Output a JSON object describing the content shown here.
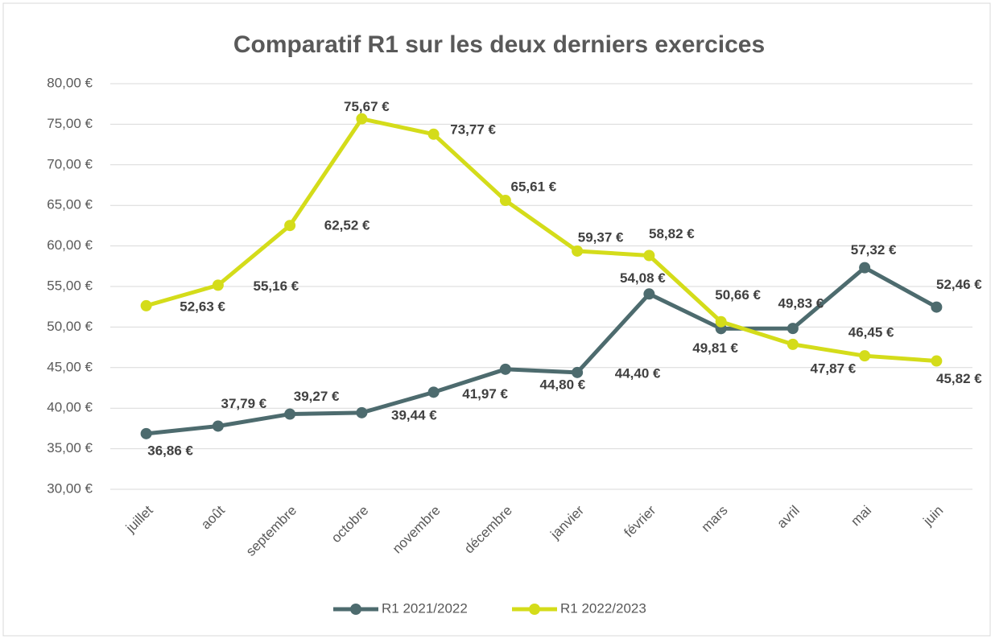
{
  "chart_data": {
    "type": "line",
    "title": "Comparatif R1 sur les deux derniers exercices",
    "categories": [
      "juillet",
      "août",
      "septembre",
      "octobre",
      "novembre",
      "décembre",
      "janvier",
      "février",
      "mars",
      "avril",
      "mai",
      "juin"
    ],
    "series": [
      {
        "name": "R1 2021/2022",
        "color": "#4d6b6e",
        "values": [
          36.86,
          37.79,
          39.27,
          39.44,
          41.97,
          44.8,
          44.4,
          54.08,
          49.81,
          49.83,
          57.32,
          52.46
        ],
        "value_labels": [
          "36,86 €",
          "37,79 €",
          "39,27 €",
          "39,44 €",
          "41,97 €",
          "44,80 €",
          "44,40 €",
          "54,08 €",
          "49,81 €",
          "49,83 €",
          "57,32 €",
          "52,46 €"
        ]
      },
      {
        "name": "R1 2022/2023",
        "color": "#d4dc1a",
        "values": [
          52.63,
          55.16,
          62.52,
          75.67,
          73.77,
          65.61,
          59.37,
          58.82,
          50.66,
          47.87,
          46.45,
          45.82
        ],
        "value_labels": [
          "52,63 €",
          "55,16 €",
          "62,52 €",
          "75,67 €",
          "73,77 €",
          "65,61 €",
          "59,37 €",
          "58,82 €",
          "50,66 €",
          "47,87 €",
          "46,45 €",
          "45,82 €"
        ]
      }
    ],
    "ylim": [
      30,
      80
    ],
    "yticks": [
      {
        "value": 30,
        "label": "30,00 €"
      },
      {
        "value": 35,
        "label": "35,00 €"
      },
      {
        "value": 40,
        "label": "40,00 €"
      },
      {
        "value": 45,
        "label": "45,00 €"
      },
      {
        "value": 50,
        "label": "50,00 €"
      },
      {
        "value": 55,
        "label": "55,00 €"
      },
      {
        "value": 60,
        "label": "60,00 €"
      },
      {
        "value": 65,
        "label": "65,00 €"
      },
      {
        "value": 70,
        "label": "70,00 €"
      },
      {
        "value": 75,
        "label": "75,00 €"
      },
      {
        "value": 80,
        "label": "80,00 €"
      }
    ],
    "grid": true,
    "legend": "bottom"
  }
}
